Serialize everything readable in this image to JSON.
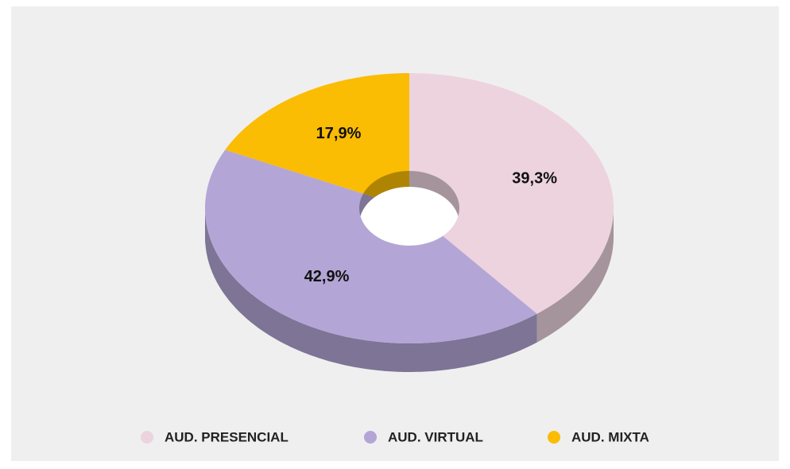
{
  "chart_data": {
    "type": "pie",
    "categories": [
      "AUD. PRESENCIAL",
      "AUD. VIRTUAL",
      "AUD. MIXTA"
    ],
    "values": [
      39.3,
      42.9,
      17.9
    ],
    "value_labels": [
      "39,3%",
      "42,9%",
      "17,9%"
    ],
    "colors": [
      "#ecd3dd",
      "#b3a6d6",
      "#fbbc04"
    ],
    "legend": "bottom"
  }
}
